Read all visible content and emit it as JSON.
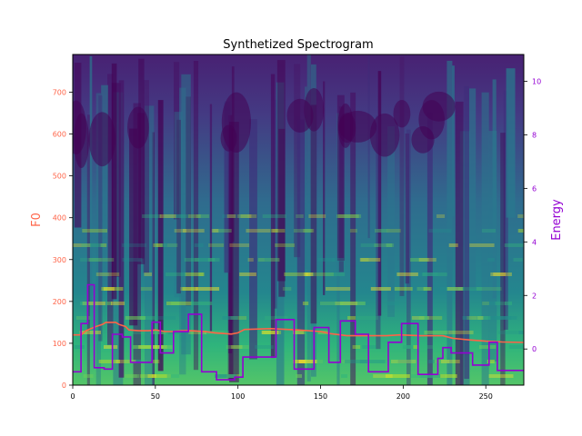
{
  "chart_data": {
    "type": "line",
    "title": "Synthetized Spectrogram",
    "background": "spectrogram (viridis heatmap)",
    "x_axis": {
      "range": [
        0,
        273
      ],
      "ticks": [
        "0",
        "50",
        "100",
        "150",
        "200",
        "250"
      ],
      "label": ""
    },
    "y_left": {
      "label": "F0",
      "color": "#ff6347",
      "range": [
        0,
        790
      ],
      "ticks": [
        "0",
        "100",
        "200",
        "300",
        "400",
        "500",
        "600",
        "700"
      ]
    },
    "y_right": {
      "label": "Energy",
      "color": "#9400d3",
      "range": [
        -1.35,
        11.0
      ],
      "ticks": [
        "0",
        "2",
        "4",
        "6",
        "8",
        "10"
      ]
    },
    "series": [
      {
        "name": "F0",
        "axis": "left",
        "color": "#ff6347",
        "x": [
          0,
          5,
          8,
          14,
          18,
          20,
          26,
          28,
          32,
          34,
          40,
          46,
          50,
          56,
          60,
          66,
          72,
          80,
          86,
          96,
          100,
          104,
          120,
          136,
          150,
          156,
          166,
          178,
          190,
          198,
          210,
          220,
          224,
          230,
          240,
          250,
          260,
          273
        ],
        "y": [
          120,
          120,
          130,
          140,
          145,
          150,
          150,
          145,
          140,
          132,
          130,
          130,
          132,
          128,
          128,
          130,
          130,
          128,
          125,
          122,
          125,
          133,
          135,
          132,
          128,
          123,
          118,
          118,
          118,
          120,
          118,
          118,
          118,
          112,
          108,
          105,
          103,
          102
        ]
      },
      {
        "name": "Energy",
        "axis": "right",
        "color": "#9400d3",
        "x": [
          0,
          5,
          5,
          9,
          9,
          13,
          13,
          19,
          19,
          24,
          24,
          30,
          30,
          35,
          35,
          48,
          48,
          53,
          53,
          61,
          61,
          70,
          70,
          78,
          78,
          87,
          87,
          98,
          98,
          103,
          103,
          123,
          123,
          134,
          134,
          146,
          146,
          155,
          155,
          162,
          162,
          171,
          171,
          179,
          179,
          191,
          191,
          199,
          199,
          209,
          209,
          221,
          221,
          224,
          224,
          229,
          229,
          242,
          242,
          252,
          252,
          257,
          257,
          273
        ],
        "y": [
          -0.85,
          -0.85,
          0.95,
          0.95,
          2.4,
          2.4,
          -0.7,
          -0.7,
          -0.75,
          -0.75,
          0.55,
          0.55,
          0.45,
          0.45,
          -0.5,
          -0.5,
          1.0,
          1.0,
          -0.15,
          -0.15,
          0.65,
          0.65,
          1.3,
          1.3,
          -0.85,
          -0.85,
          -1.15,
          -1.15,
          -1.05,
          -1.05,
          -0.3,
          -0.3,
          1.1,
          1.1,
          -0.75,
          -0.75,
          0.8,
          0.8,
          -0.5,
          -0.5,
          1.05,
          1.05,
          0.55,
          0.55,
          -0.85,
          -0.85,
          0.25,
          0.25,
          0.95,
          0.95,
          -0.95,
          -0.95,
          -0.35,
          -0.35,
          0.05,
          0.05,
          -0.15,
          -0.15,
          -0.6,
          -0.6,
          0.25,
          0.25,
          -0.8,
          -0.8
        ]
      }
    ]
  }
}
